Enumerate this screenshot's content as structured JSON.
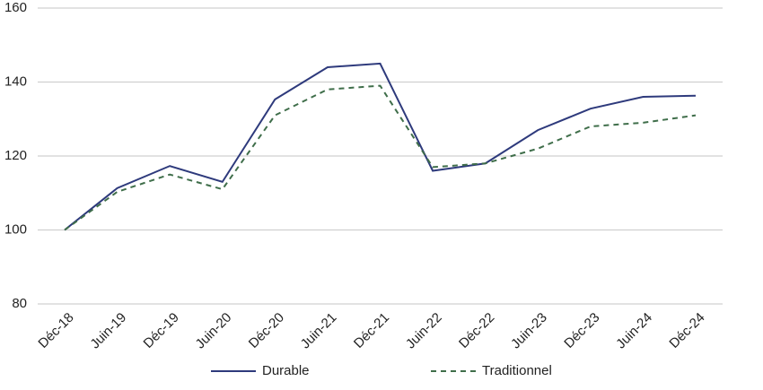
{
  "chart_data": {
    "type": "line",
    "categories": [
      "Déc-18",
      "Juin-19",
      "Déc-19",
      "Juin-20",
      "Déc-20",
      "Juin-21",
      "Déc-21",
      "Juin-22",
      "Déc-22",
      "Juin-23",
      "Déc-23",
      "Juin-24",
      "Déc-24"
    ],
    "series": [
      {
        "name": "Durable",
        "color": "#2e3a7c",
        "dash": "solid",
        "values": [
          100,
          111.3,
          117.3,
          113,
          135.3,
          144,
          145,
          116,
          118,
          127,
          132.8,
          136,
          136.3
        ]
      },
      {
        "name": "Traditionnel",
        "color": "#3f6e4a",
        "dash": "dashed",
        "values": [
          100,
          110.3,
          115,
          111,
          131,
          138,
          139,
          117,
          118,
          122,
          128,
          129,
          131
        ]
      }
    ],
    "ylim": [
      80,
      160
    ],
    "yticks": [
      80,
      100,
      120,
      140,
      160
    ],
    "grid": true,
    "legend": "bottom"
  }
}
